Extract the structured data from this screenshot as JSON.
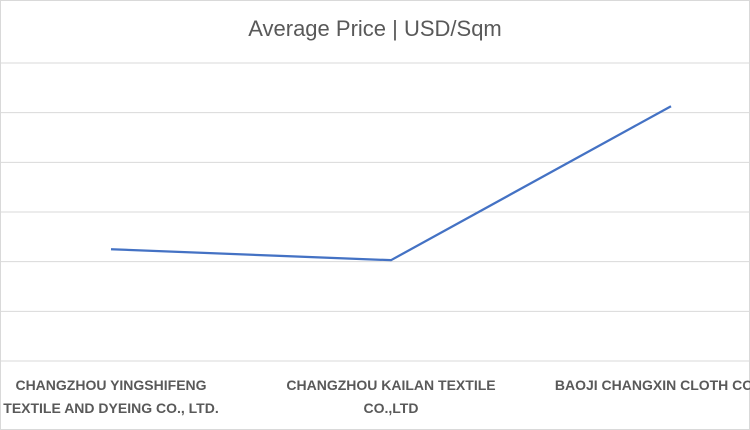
{
  "chart_data": {
    "type": "line",
    "title": "Average Price | USD/Sqm",
    "categories": [
      "CHANGZHOU YINGSHIFENG TEXTILE AND DYEING CO., LTD.",
      "CHANGZHOU KAILAN TEXTILE CO.,LTD",
      "BAOJI CHANGXIN CLOTH CO.,LTD"
    ],
    "series": [
      {
        "name": "Average Price",
        "color": "#4472c4",
        "values": [
          2.25,
          2.03,
          5.13
        ]
      }
    ],
    "ylim": [
      0,
      6
    ],
    "yticks": [
      0,
      1,
      2,
      3,
      4,
      5,
      6
    ],
    "grid": true
  }
}
